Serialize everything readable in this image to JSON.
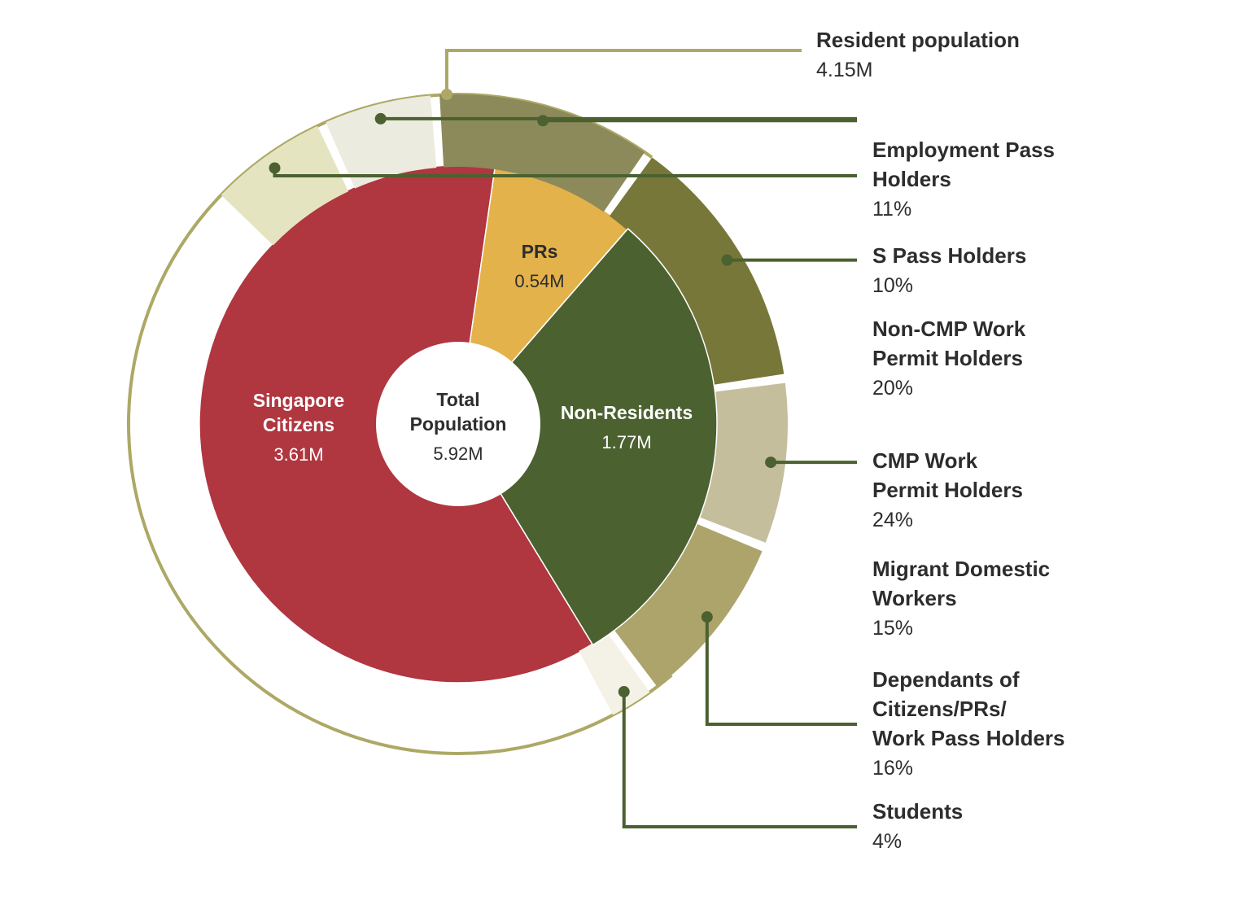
{
  "chart_data": {
    "type": "pie",
    "center": {
      "title_lines": [
        "Total",
        "Population"
      ],
      "value": "5.92M"
    },
    "inner_slices": [
      {
        "key": "citizens",
        "label_lines": [
          "Singapore",
          "Citizens"
        ],
        "value": 3.61,
        "value_label": "3.61M",
        "color": "#B03640",
        "text_color": "#ffffff"
      },
      {
        "key": "prs",
        "label_lines": [
          "PRs"
        ],
        "value": 0.54,
        "value_label": "0.54M",
        "color": "#E4B24A",
        "text_color": "#2d2d2d"
      },
      {
        "key": "nonres",
        "label_lines": [
          "Non-Residents"
        ],
        "value": 1.77,
        "value_label": "1.77M",
        "color": "#4B6130",
        "text_color": "#ffffff"
      }
    ],
    "resident_ring": {
      "label": "Resident population",
      "value_label": "4.15M",
      "color": "#ADA865"
    },
    "outer_segments": [
      {
        "key": "ep",
        "label_lines": [
          "Employment Pass",
          "Holders"
        ],
        "percent": 11,
        "percent_label": "11%",
        "color": "#E5E4C1"
      },
      {
        "key": "spass",
        "label_lines": [
          "S Pass Holders"
        ],
        "percent": 10,
        "percent_label": "10%",
        "color": "#ECEBDF"
      },
      {
        "key": "noncmp",
        "label_lines": [
          "Non-CMP Work",
          "Permit Holders"
        ],
        "percent": 20,
        "percent_label": "20%",
        "color": "#8C8A5B"
      },
      {
        "key": "cmp",
        "label_lines": [
          "CMP Work",
          "Permit Holders"
        ],
        "percent": 24,
        "percent_label": "24%",
        "color": "#77773A"
      },
      {
        "key": "mdw",
        "label_lines": [
          "Migrant Domestic",
          "Workers"
        ],
        "percent": 15,
        "percent_label": "15%",
        "color": "#C5BE9D"
      },
      {
        "key": "dependants",
        "label_lines": [
          "Dependants of",
          "Citizens/PRs/",
          "Work Pass Holders"
        ],
        "percent": 16,
        "percent_label": "16%",
        "color": "#ADA46C"
      },
      {
        "key": "students",
        "label_lines": [
          "Students"
        ],
        "percent": 4,
        "percent_label": "4%",
        "color": "#F4F2E7"
      }
    ],
    "leader_color": "#4B6130"
  }
}
